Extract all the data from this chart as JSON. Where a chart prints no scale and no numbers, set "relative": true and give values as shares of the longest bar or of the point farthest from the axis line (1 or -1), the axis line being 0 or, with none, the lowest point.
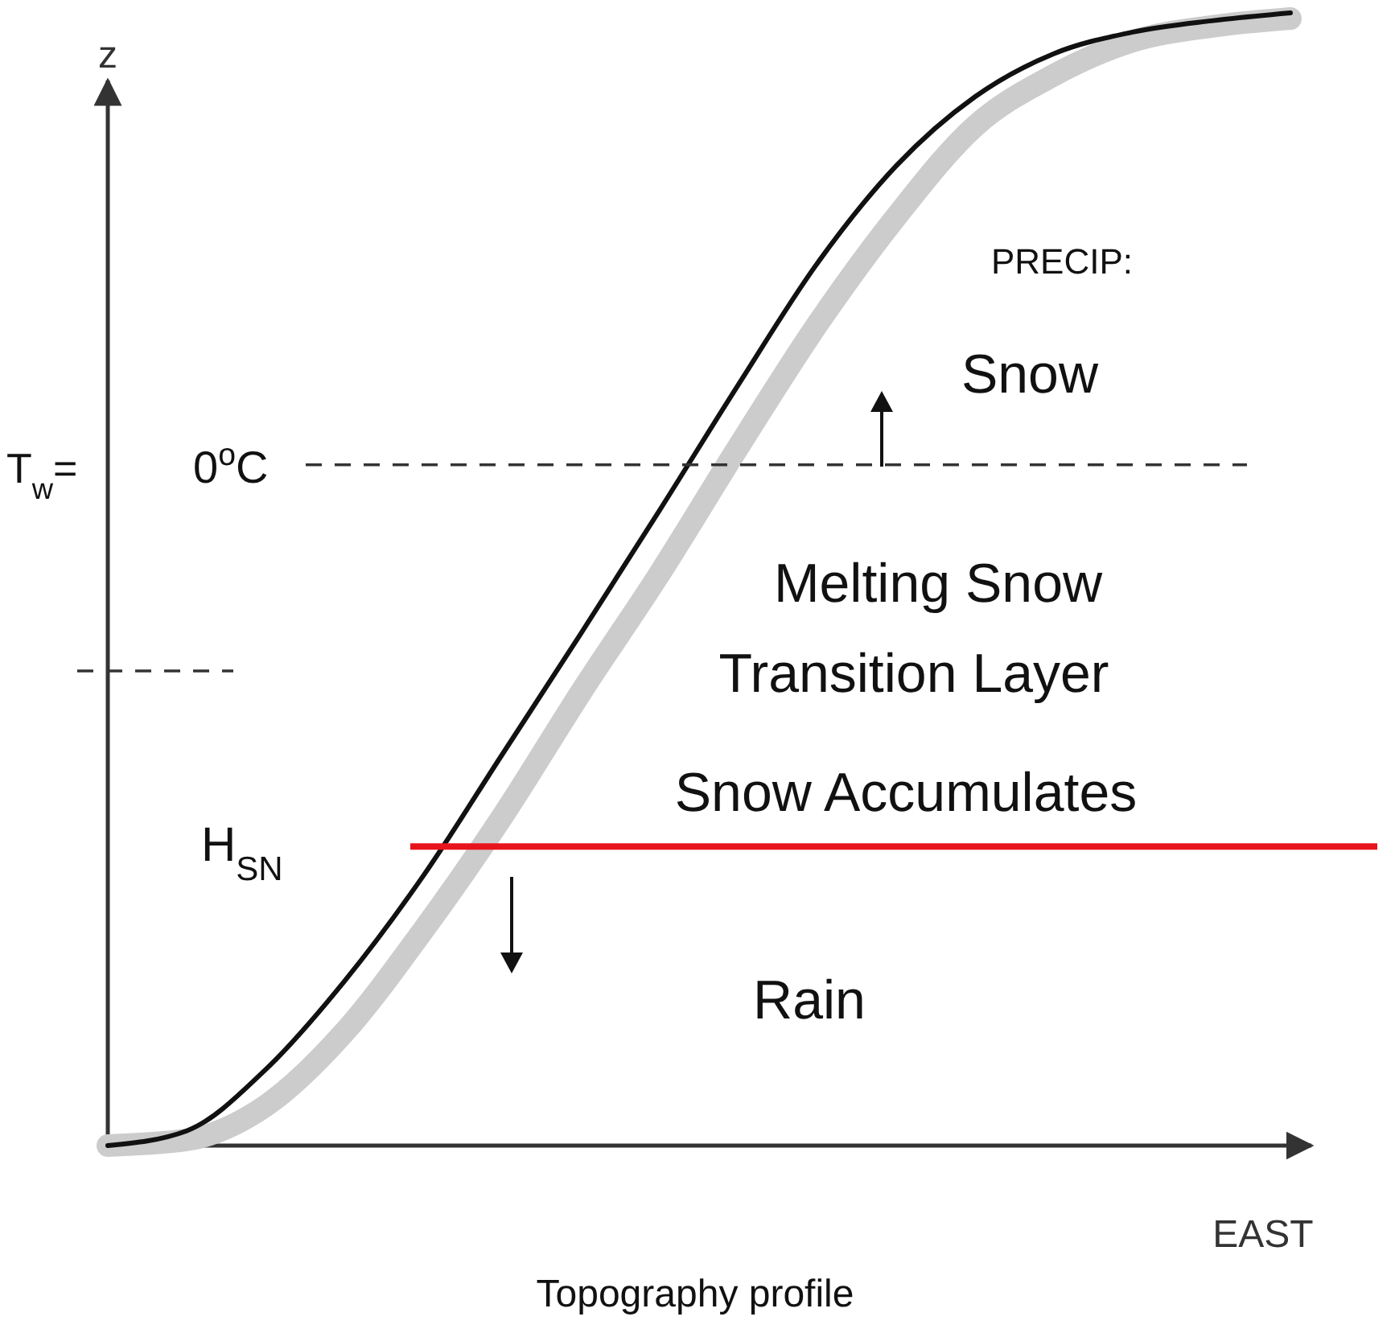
{
  "chart_data": {
    "type": "line",
    "relative": true,
    "xlabel": "EAST",
    "ylabel": "z",
    "categories": [
      null,
      null,
      null,
      null,
      null,
      null,
      null,
      null,
      null,
      null,
      null,
      null,
      null,
      null,
      null,
      null
    ],
    "series": [
      {
        "color": "#cccccc",
        "values": [
          0,
          0.005,
          0.035,
          0.1,
          0.19,
          0.29,
          0.4,
          0.505,
          0.617,
          0.725,
          0.82,
          0.9,
          0.945,
          0.975,
          0.988,
          0.995
        ]
      },
      {
        "color": "#111111",
        "values": [
          0,
          0.013,
          0.067,
          0.145,
          0.238,
          0.345,
          0.452,
          0.561,
          0.672,
          0.779,
          0.865,
          0.926,
          0.964,
          0.983,
          0.993,
          1.0
        ]
      }
    ],
    "ref_lines": [
      {
        "axis": "y",
        "value": 0.601,
        "label": "0$^{o}$C",
        "color": "#333333",
        "line_style": "dashed"
      },
      {
        "axis": "y",
        "value": 0.419,
        "color": "#333333",
        "line_style": "dashed"
      },
      {
        "axis": "y",
        "value": 0.264,
        "label": "H$_{SN}$",
        "color": "#e8141c",
        "line_style": "solid"
      }
    ],
    "annotations": [
      "PRECIP:",
      "Snow",
      "Melting Snow",
      "Transition Layer",
      "Snow Accumulates",
      "Rain",
      "T$_{w}$=",
      "Topography profile"
    ],
    "marker": "none",
    "line_style": "solid"
  }
}
